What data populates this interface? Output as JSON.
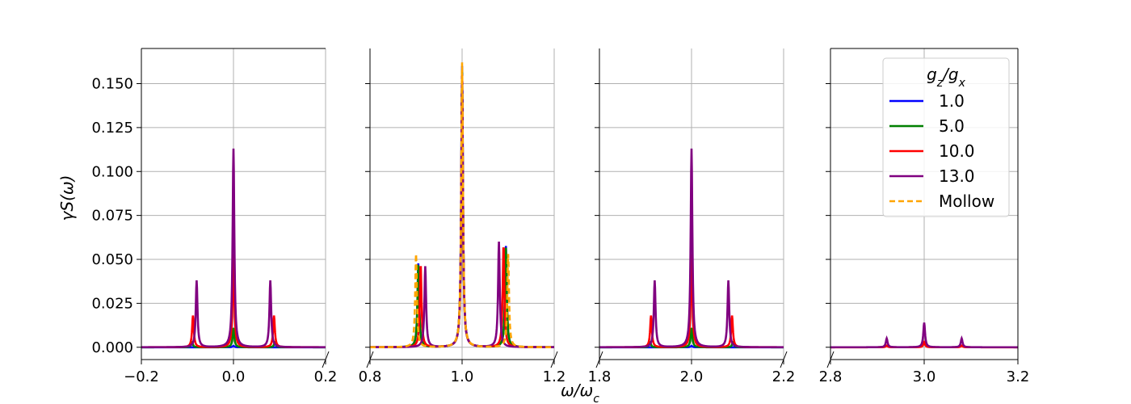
{
  "chart_data": {
    "type": "line",
    "subplots": 4,
    "broken_x_axis": true,
    "xlabel": "ω/ω_c",
    "ylabel": "γS(ω)",
    "ylim": [
      -0.007,
      0.17
    ],
    "yticks": [
      "0.000",
      "0.025",
      "0.050",
      "0.075",
      "0.100",
      "0.125",
      "0.150"
    ],
    "ytick_values": [
      0,
      0.025,
      0.05,
      0.075,
      0.1,
      0.125,
      0.15
    ],
    "grid": true,
    "panels": [
      {
        "xlim": [
          -0.2,
          0.2
        ],
        "xticks": [
          -0.2,
          0.0,
          0.2
        ],
        "xtick_labels": [
          "−0.2",
          "0.0",
          "0.2"
        ],
        "center": 0.0
      },
      {
        "xlim": [
          0.8,
          1.2
        ],
        "xticks": [
          0.8,
          1.0,
          1.2
        ],
        "xtick_labels": [
          "0.8",
          "1.0",
          "1.2"
        ],
        "center": 1.0
      },
      {
        "xlim": [
          1.8,
          2.2
        ],
        "xticks": [
          1.8,
          2.0,
          2.2
        ],
        "xtick_labels": [
          "1.8",
          "2.0",
          "2.2"
        ],
        "center": 2.0
      },
      {
        "xlim": [
          2.8,
          3.2
        ],
        "xticks": [
          2.8,
          3.0,
          3.2
        ],
        "xtick_labels": [
          "2.8",
          "3.0",
          "3.2"
        ],
        "center": 3.0
      }
    ],
    "legend": {
      "title": "g_z/g_x",
      "placement": "top-right",
      "entries": [
        {
          "label": "1.0",
          "color": "#0000ff",
          "dashed": false
        },
        {
          "label": "5.0",
          "color": "#008000",
          "dashed": false
        },
        {
          "label": "10.0",
          "color": "#ff0000",
          "dashed": false
        },
        {
          "label": "13.0",
          "color": "#800080",
          "dashed": false
        },
        {
          "label": "Mollow",
          "color": "#ffa500",
          "dashed": true
        }
      ]
    },
    "series": [
      {
        "name": "1.0",
        "color": "#0000ff",
        "dashed": false,
        "peaks": [
          [
            [
              0.0,
              0.0008
            ]
          ],
          [
            [
              0.905,
              0.048
            ],
            [
              1.0,
              0.16
            ],
            [
              1.095,
              0.058
            ]
          ],
          [
            [
              2.0,
              0.0008
            ]
          ],
          []
        ]
      },
      {
        "name": "5.0",
        "color": "#008000",
        "dashed": false,
        "peaks": [
          [
            [
              -0.09,
              0.003
            ],
            [
              0.0,
              0.011
            ],
            [
              0.09,
              0.003
            ]
          ],
          [
            [
              0.905,
              0.047
            ],
            [
              1.0,
              0.157
            ],
            [
              1.095,
              0.057
            ]
          ],
          [
            [
              1.91,
              0.003
            ],
            [
              2.0,
              0.011
            ],
            [
              2.09,
              0.003
            ]
          ],
          []
        ]
      },
      {
        "name": "10.0",
        "color": "#ff0000",
        "dashed": false,
        "peaks": [
          [
            [
              -0.088,
              0.018
            ],
            [
              0.0,
              0.053
            ],
            [
              0.088,
              0.018
            ]
          ],
          [
            [
              0.91,
              0.047
            ],
            [
              1.0,
              0.155
            ],
            [
              1.09,
              0.058
            ]
          ],
          [
            [
              1.912,
              0.018
            ],
            [
              2.0,
              0.053
            ],
            [
              2.088,
              0.018
            ]
          ],
          [
            [
              2.92,
              0.001
            ],
            [
              3.0,
              0.003
            ],
            [
              3.08,
              0.001
            ]
          ]
        ]
      },
      {
        "name": "13.0",
        "color": "#800080",
        "dashed": false,
        "peaks": [
          [
            [
              -0.08,
              0.038
            ],
            [
              0.0,
              0.113
            ],
            [
              0.08,
              0.038
            ]
          ],
          [
            [
              0.92,
              0.046
            ],
            [
              1.0,
              0.15
            ],
            [
              1.08,
              0.06
            ]
          ],
          [
            [
              1.92,
              0.038
            ],
            [
              2.0,
              0.113
            ],
            [
              2.08,
              0.038
            ]
          ],
          [
            [
              2.92,
              0.005
            ],
            [
              3.0,
              0.014
            ],
            [
              3.08,
              0.005
            ]
          ]
        ]
      },
      {
        "name": "Mollow",
        "color": "#ffa500",
        "dashed": true,
        "peaks": [
          [],
          [
            [
              0.9,
              0.053
            ],
            [
              1.0,
              0.162
            ],
            [
              1.1,
              0.053
            ]
          ],
          [],
          []
        ]
      }
    ]
  }
}
